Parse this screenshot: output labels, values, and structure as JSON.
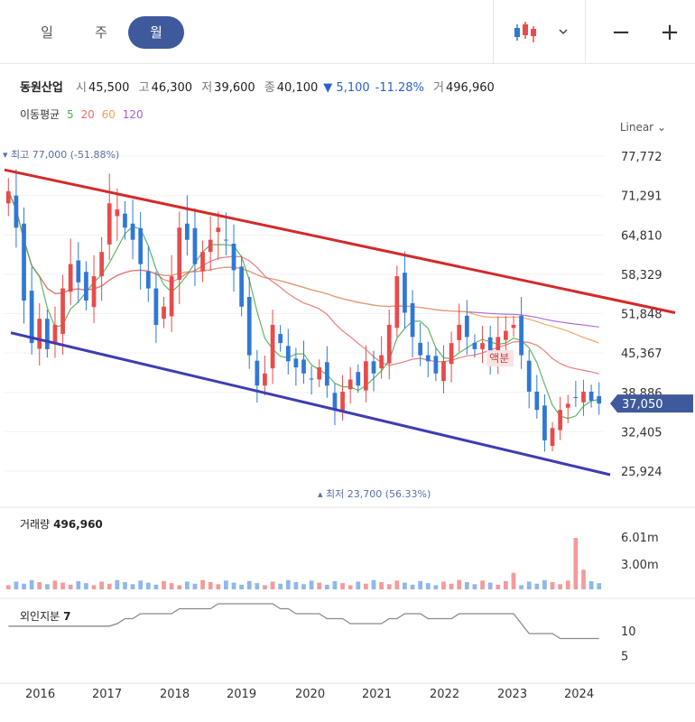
{
  "tabs": {
    "day": "일",
    "week": "주",
    "month": "월"
  },
  "toolbar": {
    "chart_type_icon": "candlestick-icon",
    "dropdown_icon": "chevron-down-icon",
    "zoom_out": "−",
    "zoom_in": "+"
  },
  "info": {
    "name": "동원산업",
    "open_label": "시",
    "open": "45,500",
    "high_label": "고",
    "high": "46,300",
    "low_label": "저",
    "low": "39,600",
    "close_label": "종",
    "close": "40,100",
    "change_arrow": "▼",
    "change": "5,100",
    "change_pct": "-11.28%",
    "volume_label": "거",
    "volume": "496,960"
  },
  "ma": {
    "label": "이동평균",
    "p5": "5",
    "p20": "20",
    "p60": "60",
    "p120": "120"
  },
  "scale_mode": "Linear",
  "price_axis": [
    "77,772",
    "71,291",
    "64,810",
    "58,329",
    "51,848",
    "45,367",
    "38,886",
    "32,405",
    "25,924"
  ],
  "current_price": "37,050",
  "high_marker": "▾ 최고 77,000 (-51.88%)",
  "low_marker": "▴ 최저 23,700 (56.33%)",
  "split_label": "액분",
  "volume_panel": {
    "label": "거래량",
    "value": "496,960",
    "ticks": [
      "6.01m",
      "3.00m"
    ]
  },
  "foreign_panel": {
    "label": "외인지분",
    "value": "7",
    "ticks": [
      "10",
      "5"
    ]
  },
  "x_axis": [
    "2016",
    "2017",
    "2018",
    "2019",
    "2020",
    "2021",
    "2022",
    "2023",
    "2024"
  ],
  "colors": {
    "up": "#e84b4b",
    "down": "#2f78d6",
    "ma5": "#4caf50",
    "ma20": "#e9706e",
    "ma60": "#f0a05a",
    "ma120": "#a45ee0",
    "resistance": "#d32a2a",
    "support": "#3d3db3",
    "accent": "#3f5a9c"
  },
  "chart_data": {
    "type": "candlestick",
    "interval": "monthly",
    "ylim": [
      25924,
      77772
    ],
    "y_ticks": [
      77772,
      71291,
      64810,
      58329,
      51848,
      45367,
      38886,
      32405,
      25924
    ],
    "x_ticks": [
      "2016",
      "2017",
      "2018",
      "2019",
      "2020",
      "2021",
      "2022",
      "2023",
      "2024"
    ],
    "last_candle": {
      "open": 45500,
      "high": 46300,
      "low": 39600,
      "close": 40100,
      "volume": 496960
    },
    "current_price": 37050,
    "all_time_high": 77000,
    "all_time_low": 23700,
    "moving_averages": [
      5,
      20,
      60,
      120
    ],
    "closes": [
      72000,
      66000,
      54000,
      47000,
      51000,
      46000,
      50000,
      56000,
      60000,
      57000,
      54000,
      58000,
      62000,
      70000,
      69000,
      66000,
      64000,
      60000,
      56000,
      50000,
      53000,
      58000,
      66000,
      64000,
      60000,
      62000,
      64000,
      66000,
      64000,
      59000,
      53000,
      45000,
      40000,
      42000,
      50000,
      47000,
      44000,
      43000,
      42000,
      41000,
      43000,
      40000,
      36000,
      39000,
      41000,
      40000,
      44000,
      42000,
      45000,
      50000,
      58000,
      52000,
      48000,
      45000,
      44000,
      42000,
      44000,
      47000,
      50000,
      48000,
      46000,
      47000,
      45000,
      48000,
      49000,
      50000,
      45000,
      39000,
      36000,
      31000,
      33000,
      36000,
      37000,
      38000,
      39000,
      37500,
      37050
    ],
    "volume_peak": 6010000,
    "foreign_ownership_ticks": [
      10,
      5
    ]
  }
}
